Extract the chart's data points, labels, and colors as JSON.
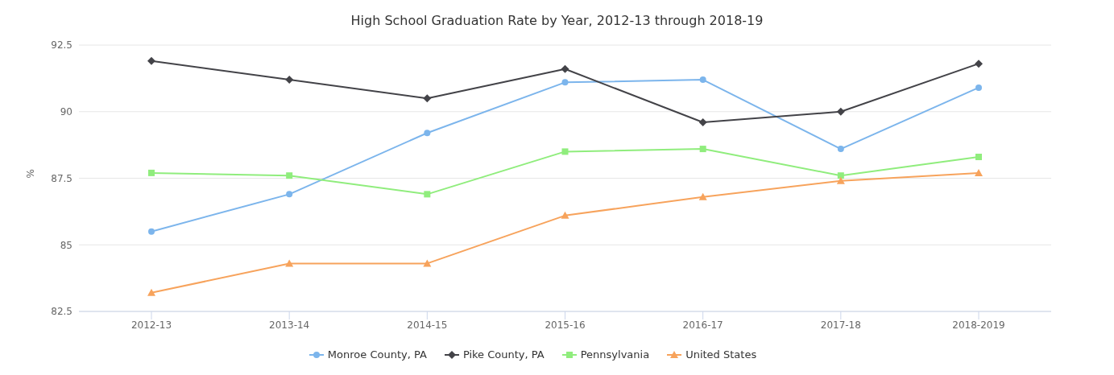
{
  "chart_data": {
    "type": "line",
    "title": "High School Graduation Rate by Year, 2012-13 through 2018-19",
    "ylabel": "%",
    "categories": [
      "2012-13",
      "2013-14",
      "2014-15",
      "2015-16",
      "2016-17",
      "2017-18",
      "2018-2019"
    ],
    "series": [
      {
        "name": "Monroe County, PA",
        "color": "#7cb5ec",
        "marker": "circle",
        "values": [
          85.5,
          86.9,
          89.2,
          91.1,
          91.2,
          88.6,
          90.9
        ]
      },
      {
        "name": "Pike County, PA",
        "color": "#434348",
        "marker": "diamond",
        "values": [
          91.9,
          91.2,
          90.5,
          91.6,
          89.6,
          90.0,
          91.8
        ]
      },
      {
        "name": "Pennsylvania",
        "color": "#90ed7d",
        "marker": "square",
        "values": [
          87.7,
          87.6,
          86.9,
          88.5,
          88.6,
          87.6,
          88.3
        ]
      },
      {
        "name": "United States",
        "color": "#f7a35c",
        "marker": "triangle",
        "values": [
          83.2,
          84.3,
          84.3,
          86.1,
          86.8,
          87.4,
          87.7
        ]
      }
    ],
    "ylim": [
      82.5,
      92.5
    ],
    "yticks": [
      82.5,
      85,
      87.5,
      90,
      92.5
    ],
    "grid": "y",
    "legend": "bottom",
    "line_style": "solid"
  }
}
